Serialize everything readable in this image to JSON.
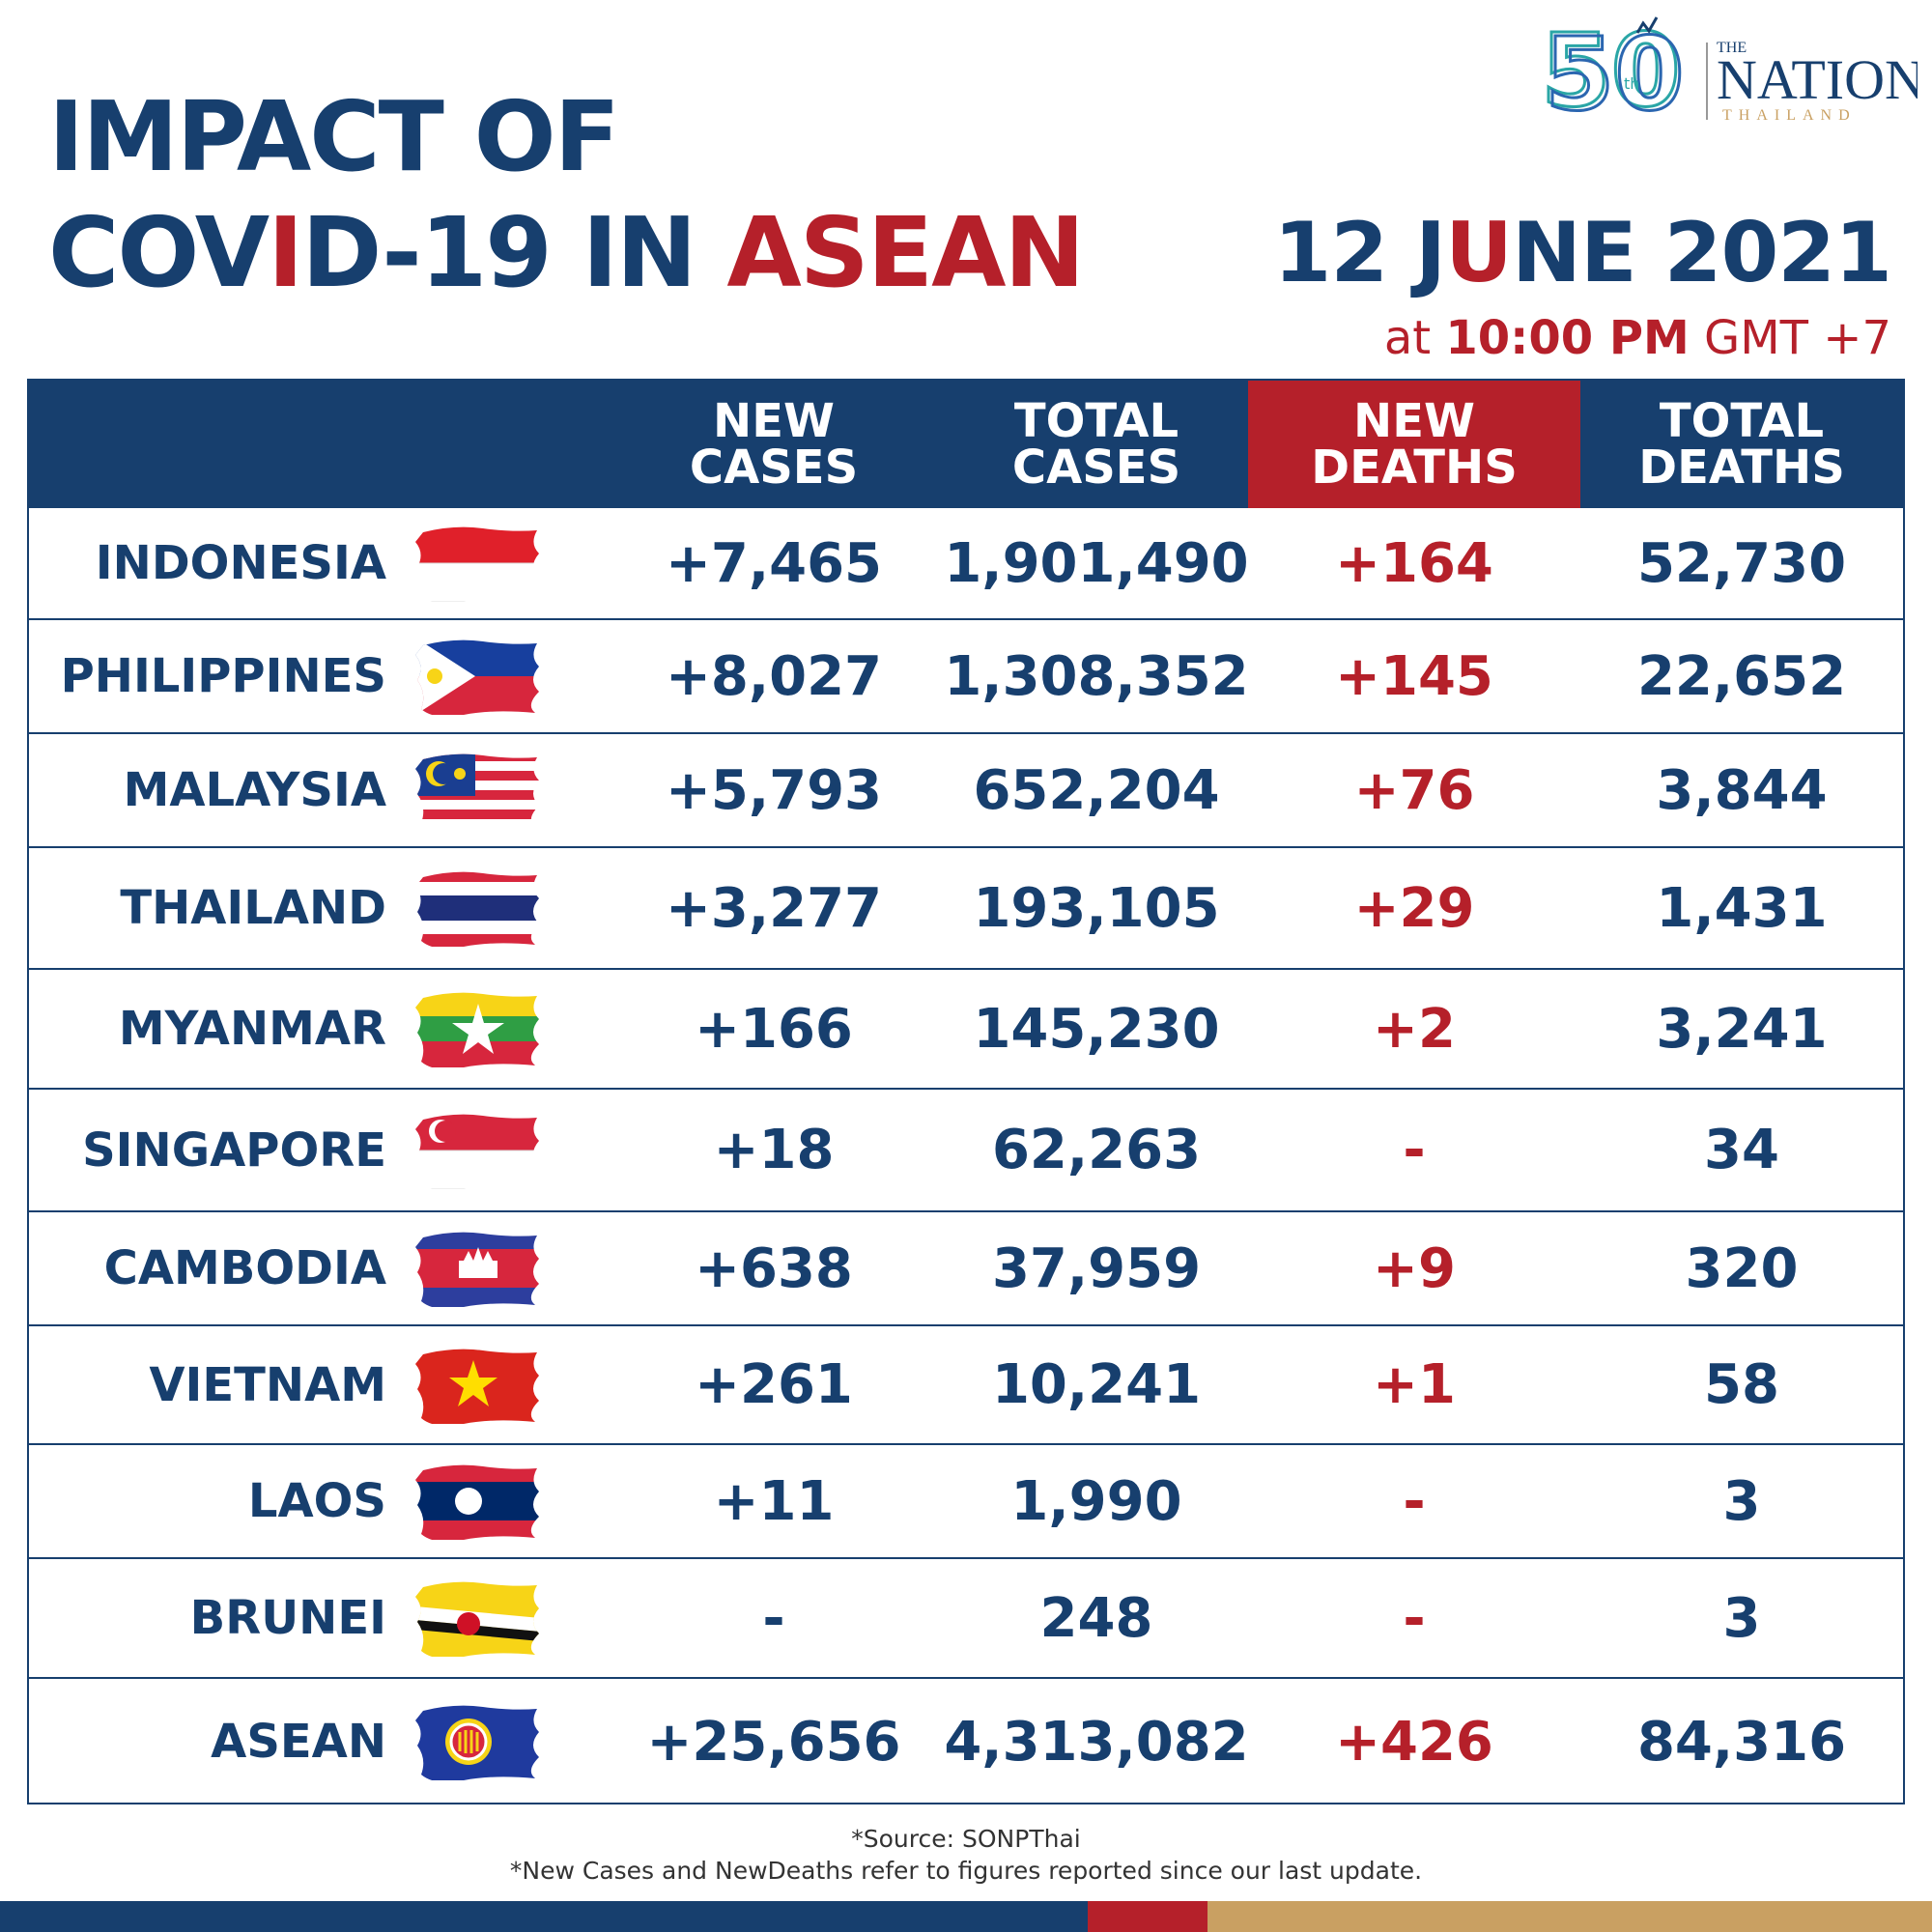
{
  "header": {
    "title_line1": "IMPACT OF",
    "title_line2_a": "COV",
    "title_line2_b": "I",
    "title_line2_c": "D-19 IN ",
    "title_line2_d": "ASEAN",
    "date_a": "12 J",
    "date_b": "U",
    "date_c": "NE 2021",
    "time_a": "at ",
    "time_b": "10:00 PM",
    "time_c": " GMT +7"
  },
  "logo": {
    "anniversary": "50",
    "suffix": "th",
    "brand_top": "THE",
    "brand_main": "NATION",
    "brand_sub": "THAILAND"
  },
  "table": {
    "headers": {
      "new_cases": [
        "NEW",
        "CASES"
      ],
      "total_cases": [
        "TOTAL",
        "CASES"
      ],
      "new_deaths": [
        "NEW",
        "DEATHS"
      ],
      "total_deaths": [
        "TOTAL",
        "DEATHS"
      ]
    },
    "rows": [
      {
        "country": "INDONESIA",
        "flag": "indonesia-flag",
        "new_cases": "+7,465",
        "total_cases": "1,901,490",
        "new_deaths": "+164",
        "total_deaths": "52,730"
      },
      {
        "country": "PHILIPPINES",
        "flag": "philippines-flag",
        "new_cases": "+8,027",
        "total_cases": "1,308,352",
        "new_deaths": "+145",
        "total_deaths": "22,652"
      },
      {
        "country": "MALAYSIA",
        "flag": "malaysia-flag",
        "new_cases": "+5,793",
        "total_cases": "652,204",
        "new_deaths": "+76",
        "total_deaths": "3,844"
      },
      {
        "country": "THAILAND",
        "flag": "thailand-flag",
        "new_cases": "+3,277",
        "total_cases": "193,105",
        "new_deaths": "+29",
        "total_deaths": "1,431"
      },
      {
        "country": "MYANMAR",
        "flag": "myanmar-flag",
        "new_cases": "+166",
        "total_cases": "145,230",
        "new_deaths": "+2",
        "total_deaths": "3,241"
      },
      {
        "country": "SINGAPORE",
        "flag": "singapore-flag",
        "new_cases": "+18",
        "total_cases": "62,263",
        "new_deaths": "-",
        "total_deaths": "34"
      },
      {
        "country": "CAMBODIA",
        "flag": "cambodia-flag",
        "new_cases": "+638",
        "total_cases": "37,959",
        "new_deaths": "+9",
        "total_deaths": "320"
      },
      {
        "country": "VIETNAM",
        "flag": "vietnam-flag",
        "new_cases": "+261",
        "total_cases": "10,241",
        "new_deaths": "+1",
        "total_deaths": "58"
      },
      {
        "country": "LAOS",
        "flag": "laos-flag",
        "new_cases": "+11",
        "total_cases": "1,990",
        "new_deaths": "-",
        "total_deaths": "3"
      },
      {
        "country": "BRUNEI",
        "flag": "brunei-flag",
        "new_cases": "-",
        "total_cases": "248",
        "new_deaths": "-",
        "total_deaths": "3"
      },
      {
        "country": "ASEAN",
        "flag": "asean-flag",
        "new_cases": "+25,656",
        "total_cases": "4,313,082",
        "new_deaths": "+426",
        "total_deaths": "84,316"
      }
    ]
  },
  "footer": {
    "source": "*Source: SONPThai",
    "note": "*New Cases and NewDeaths refer to figures reported since our last update."
  },
  "colors": {
    "navy": "#173f6e",
    "red": "#b5202a",
    "gold": "#c9a062"
  }
}
